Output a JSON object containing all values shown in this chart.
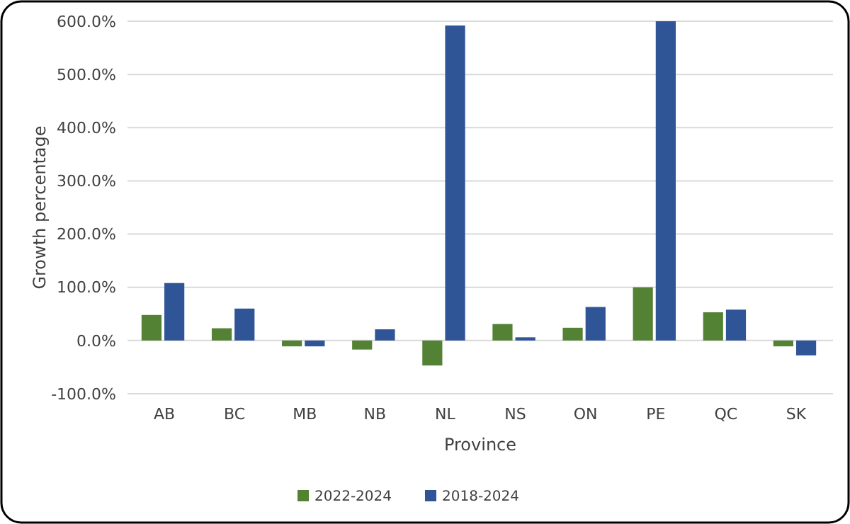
{
  "chart_data": {
    "type": "bar",
    "xlabel": "Province",
    "ylabel": "Growth percentage",
    "categories": [
      "AB",
      "BC",
      "MB",
      "NB",
      "NL",
      "NS",
      "ON",
      "PE",
      "QC",
      "SK"
    ],
    "series": [
      {
        "name": "2022-2024",
        "color": "#548235",
        "values": [
          48,
          23,
          -11,
          -17,
          -47,
          31,
          24,
          100,
          53,
          -11
        ]
      },
      {
        "name": "2018-2024",
        "color": "#2f5597",
        "values": [
          108,
          60,
          -11,
          21,
          592,
          6,
          63,
          600,
          58,
          -28
        ]
      }
    ],
    "ylim": [
      -100,
      600
    ],
    "yticks": [
      {
        "value": -100,
        "label": "-100.0%"
      },
      {
        "value": 0,
        "label": "0.0%"
      },
      {
        "value": 100,
        "label": "100.0%"
      },
      {
        "value": 200,
        "label": "200.0%"
      },
      {
        "value": 300,
        "label": "300.0%"
      },
      {
        "value": 400,
        "label": "400.0%"
      },
      {
        "value": 500,
        "label": "500.0%"
      },
      {
        "value": 600,
        "label": "600.0%"
      }
    ],
    "grid": "y",
    "legend": "bottom"
  }
}
